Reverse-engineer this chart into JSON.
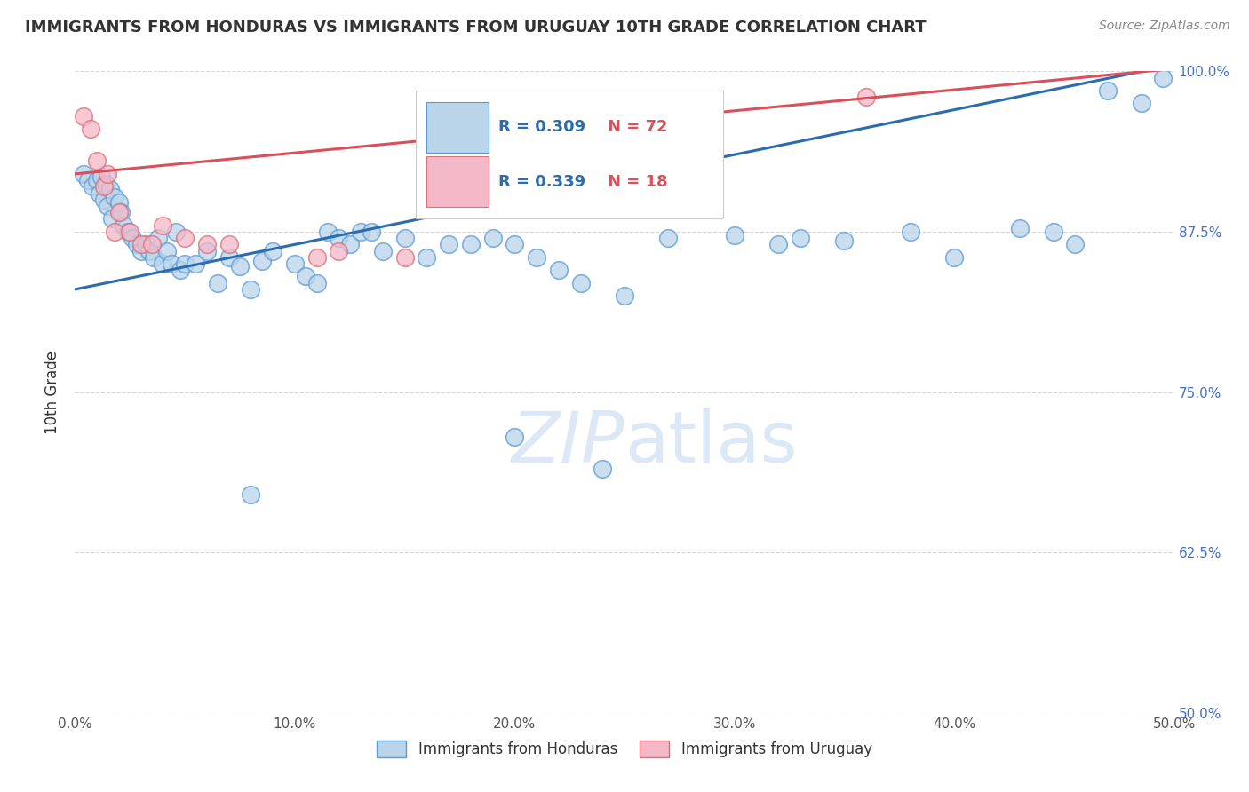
{
  "title": "IMMIGRANTS FROM HONDURAS VS IMMIGRANTS FROM URUGUAY 10TH GRADE CORRELATION CHART",
  "source_text": "Source: ZipAtlas.com",
  "ylabel": "10th Grade",
  "xlim": [
    0.0,
    50.0
  ],
  "ylim": [
    50.0,
    100.0
  ],
  "xticks": [
    0.0,
    10.0,
    20.0,
    30.0,
    40.0,
    50.0
  ],
  "yticks": [
    50.0,
    62.5,
    75.0,
    87.5,
    100.0
  ],
  "legend_r_honduras": "R = 0.309",
  "legend_n_honduras": "N = 72",
  "legend_r_uruguay": "R = 0.339",
  "legend_n_uruguay": "N = 18",
  "honduras_color": "#bad4ea",
  "honduras_edge": "#5b9bd5",
  "uruguay_color": "#f4b8c8",
  "uruguay_edge": "#d9707a",
  "line_blue": "#2b6cb0",
  "line_pink": "#d9505a",
  "watermark_color": "#dce8f5",
  "background_color": "#ffffff",
  "title_color": "#333333",
  "source_color": "#888888",
  "tick_color": "#555555",
  "right_tick_color": "#4472c4",
  "honduras_x": [
    0.4,
    0.6,
    0.8,
    1.0,
    1.1,
    1.2,
    1.3,
    1.4,
    1.5,
    1.6,
    1.7,
    1.8,
    2.0,
    2.1,
    2.2,
    2.4,
    2.6,
    2.8,
    3.0,
    3.2,
    3.4,
    3.6,
    3.8,
    4.0,
    4.2,
    4.4,
    4.6,
    4.8,
    5.0,
    5.5,
    6.0,
    6.5,
    7.0,
    7.5,
    8.0,
    8.5,
    9.0,
    10.0,
    10.5,
    11.0,
    11.5,
    12.0,
    12.5,
    13.0,
    14.0,
    15.0,
    16.0,
    17.0,
    18.0,
    19.0,
    20.0,
    21.0,
    22.0,
    23.0,
    24.0,
    25.0,
    27.0,
    30.0,
    32.0,
    33.0,
    35.0,
    38.0,
    40.0,
    43.0,
    44.5,
    45.5,
    47.0,
    48.5,
    49.5,
    20.0,
    8.0,
    13.5
  ],
  "honduras_y": [
    92.0,
    91.5,
    91.0,
    91.5,
    90.5,
    91.8,
    90.0,
    91.2,
    89.5,
    90.8,
    88.5,
    90.2,
    89.8,
    89.0,
    88.0,
    87.5,
    87.0,
    86.5,
    86.0,
    86.5,
    86.0,
    85.5,
    87.0,
    85.0,
    86.0,
    85.0,
    87.5,
    84.5,
    85.0,
    85.0,
    86.0,
    83.5,
    85.5,
    84.8,
    83.0,
    85.2,
    86.0,
    85.0,
    84.0,
    83.5,
    87.5,
    87.0,
    86.5,
    87.5,
    86.0,
    87.0,
    85.5,
    86.5,
    86.5,
    87.0,
    71.5,
    85.5,
    84.5,
    83.5,
    69.0,
    82.5,
    87.0,
    87.2,
    86.5,
    87.0,
    86.8,
    87.5,
    85.5,
    87.8,
    87.5,
    86.5,
    98.5,
    97.5,
    99.5,
    86.5,
    67.0,
    87.5
  ],
  "uruguay_x": [
    0.4,
    0.7,
    1.0,
    1.3,
    1.5,
    1.8,
    2.0,
    2.5,
    3.0,
    3.5,
    4.0,
    5.0,
    6.0,
    7.0,
    11.0,
    12.0,
    15.0,
    36.0
  ],
  "uruguay_y": [
    96.5,
    95.5,
    93.0,
    91.0,
    92.0,
    87.5,
    89.0,
    87.5,
    86.5,
    86.5,
    88.0,
    87.0,
    86.5,
    86.5,
    85.5,
    86.0,
    85.5,
    98.0
  ],
  "blue_line_x": [
    0.0,
    50.0
  ],
  "blue_line_y": [
    83.0,
    100.5
  ],
  "pink_line_x": [
    0.0,
    50.0
  ],
  "pink_line_y": [
    92.0,
    100.2
  ]
}
